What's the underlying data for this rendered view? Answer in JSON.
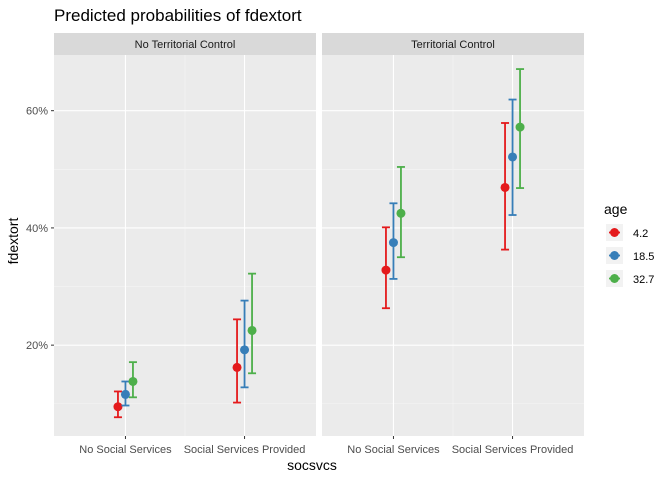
{
  "chart_data": {
    "type": "scatter",
    "title": "Predicted probabilities of fdextort",
    "xlabel": "socsvcs",
    "ylabel": "fdextort",
    "categories": [
      "No Social Services",
      "Social Services Provided"
    ],
    "ylim": [
      0.045,
      0.695
    ],
    "y_ticks": [
      0.2,
      0.4,
      0.6
    ],
    "y_tick_labels": [
      "20%",
      "40%",
      "60%"
    ],
    "grid": true,
    "legend": {
      "title": "age",
      "placement": "right"
    },
    "panels": [
      {
        "name": "No Territorial Control",
        "series": [
          {
            "name": "4.2",
            "color": "#e41a1c",
            "values": [
              0.095,
              0.162
            ],
            "lower": [
              0.077,
              0.102
            ],
            "upper": [
              0.121,
              0.244
            ]
          },
          {
            "name": "18.5",
            "color": "#377eb8",
            "values": [
              0.116,
              0.192
            ],
            "lower": [
              0.097,
              0.128
            ],
            "upper": [
              0.138,
              0.276
            ]
          },
          {
            "name": "32.7",
            "color": "#4daf4a",
            "values": [
              0.138,
              0.225
            ],
            "lower": [
              0.111,
              0.152
            ],
            "upper": [
              0.171,
              0.322
            ]
          }
        ]
      },
      {
        "name": "Territorial Control",
        "series": [
          {
            "name": "4.2",
            "color": "#e41a1c",
            "values": [
              0.328,
              0.469
            ],
            "lower": [
              0.263,
              0.363
            ],
            "upper": [
              0.401,
              0.579
            ]
          },
          {
            "name": "18.5",
            "color": "#377eb8",
            "values": [
              0.375,
              0.521
            ],
            "lower": [
              0.313,
              0.422
            ],
            "upper": [
              0.442,
              0.619
            ]
          },
          {
            "name": "32.7",
            "color": "#4daf4a",
            "values": [
              0.425,
              0.572
            ],
            "lower": [
              0.35,
              0.468
            ],
            "upper": [
              0.504,
              0.671
            ]
          }
        ]
      }
    ]
  }
}
